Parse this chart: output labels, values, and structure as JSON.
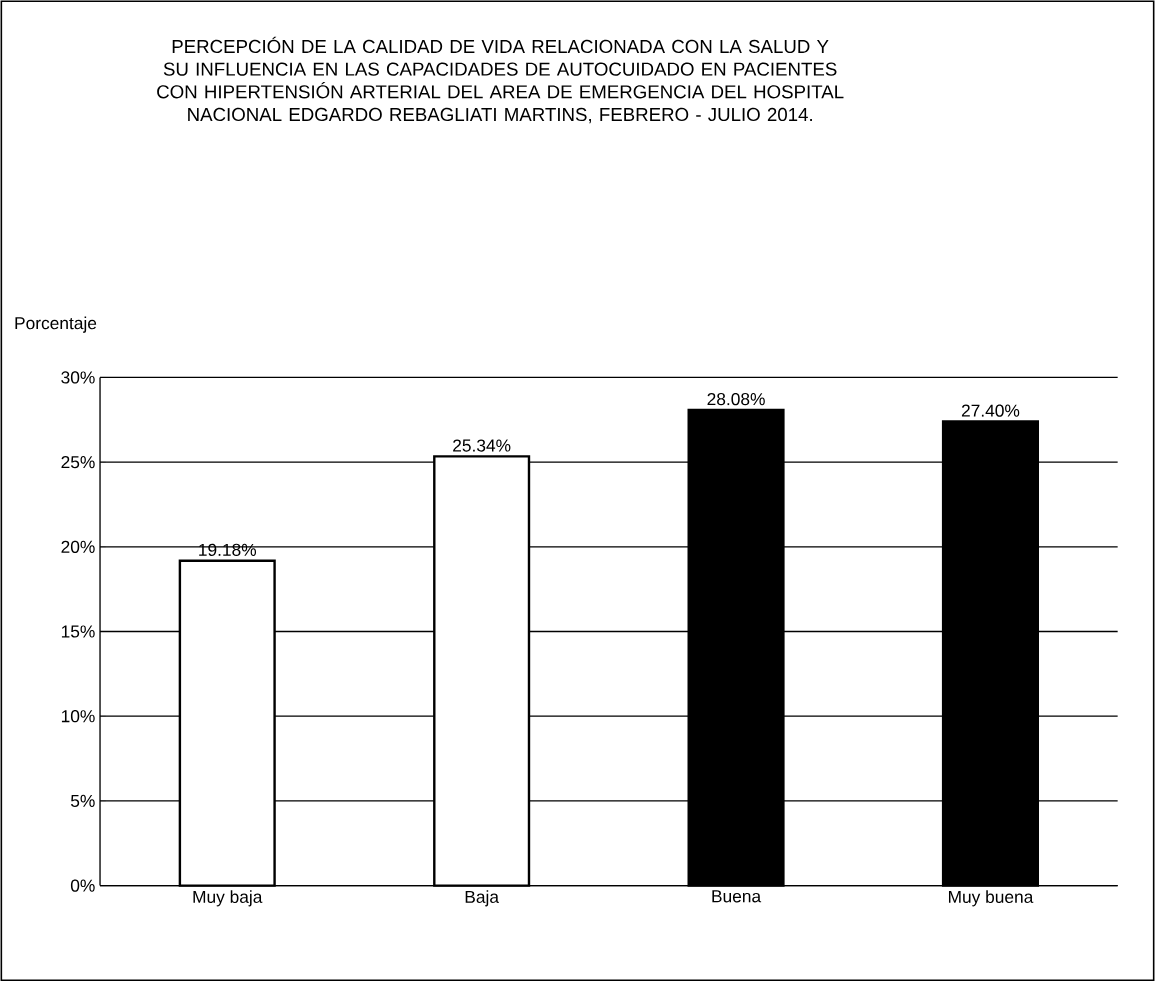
{
  "chart_data": {
    "type": "bar",
    "title": "PERCEPCIÓN DE LA CALIDAD DE VIDA RELACIONADA CON LA SALUD Y SU INFLUENCIA EN LAS CAPACIDADES DE AUTOCUIDADO EN PACIENTES CON HIPERTENSIÓN ARTERIAL DEL AREA DE EMERGENCIA DEL HOSPITAL NACIONAL EDGARDO REBAGLIATI MARTINS, FEBRERO - JULIO 2014.",
    "ylabel": "Porcentaje",
    "categories": [
      "Muy baja",
      "Baja",
      "Buena",
      "Muy buena"
    ],
    "values": [
      19.18,
      25.34,
      28.08,
      27.4
    ],
    "value_labels": [
      "19.18%",
      "25.34%",
      "28.08%",
      "27.40%"
    ],
    "colors": [
      "#ffffff",
      "#ffffff",
      "#000000",
      "#000000"
    ],
    "ylim": [
      0,
      30
    ],
    "yticks": [
      {
        "value": 0,
        "label": "0%"
      },
      {
        "value": 5,
        "label": "5%"
      },
      {
        "value": 10,
        "label": "10%"
      },
      {
        "value": 15,
        "label": "15%"
      },
      {
        "value": 20,
        "label": "20%"
      },
      {
        "value": 25,
        "label": "25%"
      },
      {
        "value": 30,
        "label": "30%"
      }
    ],
    "grid": "y"
  }
}
